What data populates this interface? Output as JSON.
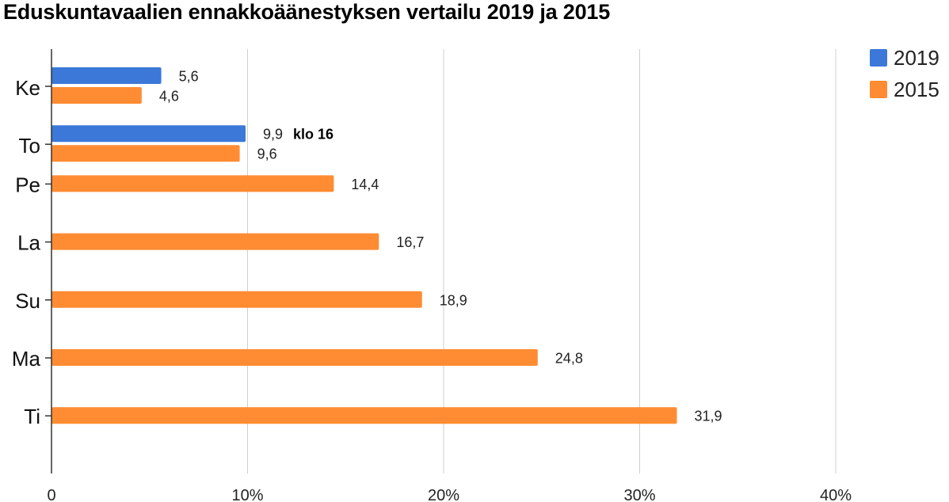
{
  "chart_data": {
    "type": "bar",
    "orientation": "horizontal",
    "title": "Eduskuntavaalien ennakkoäänestyksen vertailu 2019 ja 2015",
    "categories": [
      "Ke",
      "To",
      "Pe",
      "La",
      "Su",
      "Ma",
      "Ti"
    ],
    "series": [
      {
        "name": "2019",
        "color": "#3B78D8",
        "values": [
          5.6,
          9.9,
          null,
          null,
          null,
          null,
          null
        ]
      },
      {
        "name": "2015",
        "color": "#FF8C33",
        "values": [
          4.6,
          9.6,
          14.4,
          16.7,
          18.9,
          24.8,
          31.9
        ]
      }
    ],
    "data_labels": {
      "2019": [
        "5,6",
        "9,9",
        null,
        null,
        null,
        null,
        null
      ],
      "2015": [
        "4,6",
        "9,6",
        "14,4",
        "16,7",
        "18,9",
        "24,8",
        "31,9"
      ]
    },
    "annotations": [
      {
        "category": "To",
        "series": "2019",
        "text": "klo 16"
      }
    ],
    "xlim": [
      0,
      40
    ],
    "x_ticks": [
      0,
      10,
      20,
      30,
      40
    ],
    "x_tick_labels": [
      "0",
      "10%",
      "20%",
      "30%",
      "40%"
    ],
    "grid": true,
    "legend_position": "top-right"
  }
}
